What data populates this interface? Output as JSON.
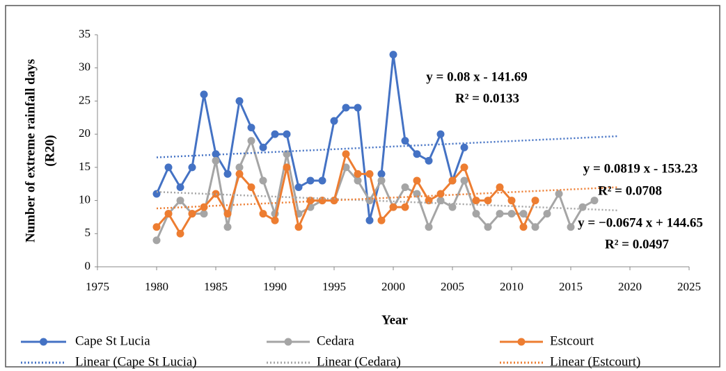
{
  "chart_data": {
    "type": "line",
    "xlabel": "Year",
    "ylabel": [
      "Number of extreme rainfall days",
      "(R20)"
    ],
    "xlim": [
      1975,
      2025
    ],
    "ylim": [
      0,
      35
    ],
    "xticks": [
      1975,
      1980,
      1985,
      1990,
      1995,
      2000,
      2005,
      2010,
      2015,
      2020,
      2025
    ],
    "yticks": [
      0,
      5,
      10,
      15,
      20,
      25,
      30,
      35
    ],
    "grid": false,
    "legend": "bottom",
    "series": [
      {
        "name": "Cape St Lucia",
        "color": "#4472c4",
        "style": "solid",
        "marker": true,
        "x": [
          1980,
          1981,
          1982,
          1983,
          1984,
          1985,
          1986,
          1987,
          1988,
          1989,
          1990,
          1991,
          1992,
          1993,
          1994,
          1995,
          1996,
          1997,
          1998,
          1999,
          2000,
          2001,
          2002,
          2003,
          2004,
          2005,
          2006
        ],
        "values": [
          11,
          15,
          12,
          15,
          26,
          17,
          14,
          25,
          21,
          18,
          20,
          20,
          12,
          13,
          13,
          22,
          24,
          24,
          7,
          14,
          32,
          19,
          17,
          16,
          20,
          13,
          18
        ]
      },
      {
        "name": "Cedara",
        "color": "#a5a5a5",
        "style": "solid",
        "marker": true,
        "x": [
          1980,
          1981,
          1982,
          1983,
          1984,
          1985,
          1986,
          1987,
          1988,
          1989,
          1990,
          1991,
          1992,
          1993,
          1994,
          1995,
          1996,
          1997,
          1998,
          1999,
          2000,
          2001,
          2002,
          2003,
          2004,
          2005,
          2006,
          2007,
          2008,
          2009,
          2010,
          2011,
          2012,
          2013,
          2014,
          2015,
          2016,
          2017
        ],
        "values": [
          4,
          8,
          10,
          8,
          8,
          16,
          6,
          15,
          19,
          13,
          8,
          17,
          8,
          9,
          10,
          10,
          15,
          13,
          10,
          13,
          9,
          12,
          11,
          6,
          10,
          9,
          13,
          8,
          6,
          8,
          8,
          8,
          6,
          8,
          11,
          6,
          9,
          10
        ]
      },
      {
        "name": "Estcourt",
        "color": "#ed7d31",
        "style": "solid",
        "marker": true,
        "x": [
          1980,
          1981,
          1982,
          1983,
          1984,
          1985,
          1986,
          1987,
          1988,
          1989,
          1990,
          1991,
          1992,
          1993,
          1994,
          1995,
          1996,
          1997,
          1998,
          1999,
          2000,
          2001,
          2002,
          2003,
          2004,
          2005,
          2006,
          2007,
          2008,
          2009,
          2010,
          2011,
          2012
        ],
        "values": [
          6,
          8,
          5,
          8,
          9,
          11,
          8,
          14,
          12,
          8,
          7,
          15,
          6,
          10,
          10,
          10,
          17,
          14,
          14,
          7,
          9,
          9,
          13,
          10,
          11,
          13,
          15,
          10,
          10,
          12,
          10,
          6,
          10
        ]
      },
      {
        "name": "Linear (Cape St Lucia)",
        "color": "#4472c4",
        "style": "dotted",
        "marker": false,
        "x": [
          1980,
          2019
        ],
        "values": [
          16.5,
          19.7
        ]
      },
      {
        "name": "Linear (Cedara)",
        "color": "#a5a5a5",
        "style": "dotted",
        "marker": false,
        "x": [
          1980,
          2019
        ],
        "values": [
          11.3,
          8.5
        ]
      },
      {
        "name": "Linear (Estcourt)",
        "color": "#ed7d31",
        "style": "dotted",
        "marker": false,
        "x": [
          1980,
          2019
        ],
        "values": [
          8.8,
          12
        ]
      }
    ],
    "annotations": [
      "y = 0.08 x - 141.69",
      "R² = 0.0133",
      "y = 0.0819 x - 153.23",
      "R² = 0.0708",
      "y = −0.0674 x + 144.65",
      "R² = 0.0497"
    ]
  }
}
